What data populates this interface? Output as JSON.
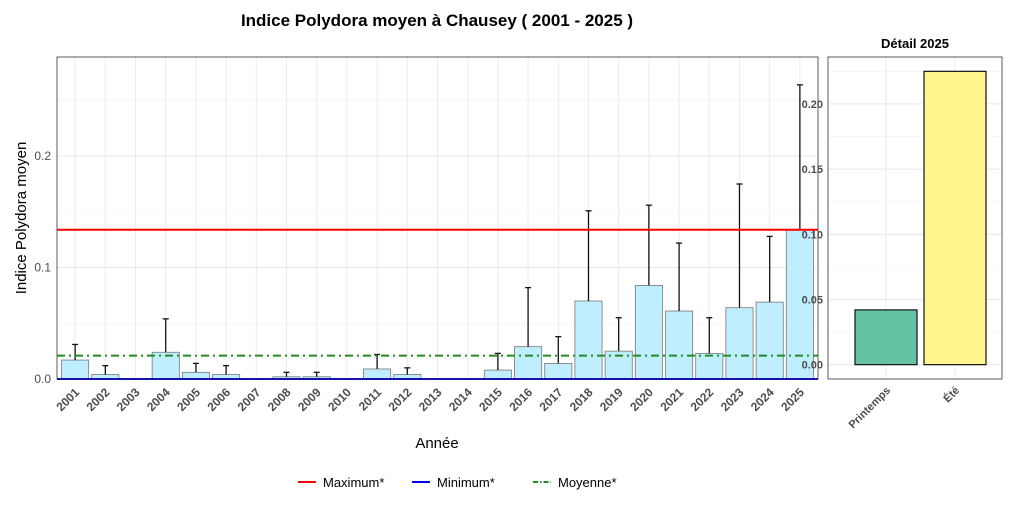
{
  "chart_data": [
    {
      "type": "bar",
      "title": "Indice Polydora moyen à Chausey ( 2001 - 2025 )",
      "xlabel": "Année",
      "ylabel": "Indice Polydora moyen",
      "ylim": [
        0,
        0.289
      ],
      "yticks": [
        0,
        0.1,
        0.2
      ],
      "ytick_labels": [
        "0.0",
        "0.1",
        "0.2"
      ],
      "categories": [
        "2001",
        "2002",
        "2003",
        "2004",
        "2005",
        "2006",
        "2007",
        "2008",
        "2009",
        "2010",
        "2011",
        "2012",
        "2013",
        "2014",
        "2015",
        "2016",
        "2017",
        "2018",
        "2019",
        "2020",
        "2021",
        "2022",
        "2023",
        "2024",
        "2025"
      ],
      "values": [
        0.017,
        0.004,
        0,
        0.024,
        0.006,
        0.004,
        0,
        0.002,
        0.002,
        0,
        0.009,
        0.004,
        0,
        0,
        0.008,
        0.029,
        0.014,
        0.07,
        0.025,
        0.084,
        0.061,
        0.023,
        0.064,
        0.069,
        0.134
      ],
      "error_upper": [
        0.031,
        0.012,
        null,
        0.054,
        0.014,
        0.012,
        null,
        0.006,
        0.006,
        null,
        0.022,
        0.01,
        null,
        null,
        0.023,
        0.082,
        0.038,
        0.151,
        0.055,
        0.156,
        0.122,
        0.055,
        0.175,
        0.128,
        0.264
      ],
      "bar_color": "#BFEFFF",
      "reference_lines": [
        {
          "name": "Maximum*",
          "value": 0.134,
          "color": "#FF0000",
          "style": "solid"
        },
        {
          "name": "Minimum*",
          "value": 0,
          "color": "#0000FF",
          "style": "solid"
        },
        {
          "name": "Moyenne*",
          "value": 0.021,
          "color": "#228B22",
          "style": "dotdash"
        }
      ],
      "legend_position": "bottom",
      "grid": true
    },
    {
      "type": "bar",
      "title": "Détail 2025",
      "categories": [
        "Printemps",
        "Été"
      ],
      "values": [
        0.042,
        0.225
      ],
      "colors": [
        "#66C2A5",
        "#FFF68F"
      ],
      "ylim": [
        -0.011,
        0.236
      ],
      "yticks": [
        0,
        0.05,
        0.1,
        0.15,
        0.2
      ],
      "ytick_labels": [
        "0.00",
        "0.05",
        "0.10",
        "0.15",
        "0.20"
      ],
      "grid": true
    }
  ]
}
